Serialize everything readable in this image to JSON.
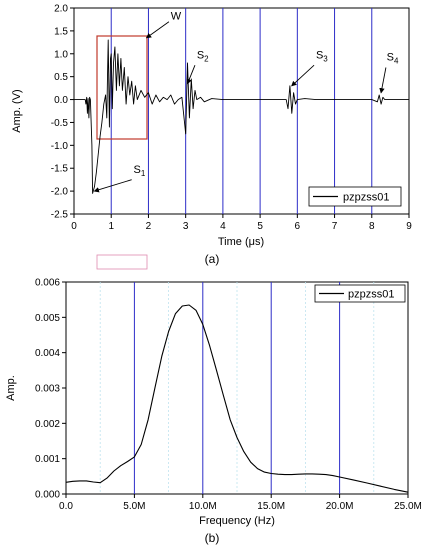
{
  "chart_data": [
    {
      "type": "line",
      "panel_label": "(a)",
      "xlabel": "Time (μs)",
      "ylabel": "Amp. (V)",
      "xlim": [
        0,
        9
      ],
      "ylim": [
        -2.5,
        2.0
      ],
      "x_ticks": [
        0,
        1,
        2,
        3,
        4,
        5,
        6,
        7,
        8,
        9
      ],
      "y_ticks": [
        -2.5,
        -2.0,
        -1.5,
        -1.0,
        -0.5,
        0.0,
        0.5,
        1.0,
        1.5,
        2.0
      ],
      "y_tick_labels": [
        "-2.5",
        "-2.0",
        "-1.5",
        "-1.0",
        "-0.5",
        "0.0",
        "0.5",
        "1.0",
        "1.5",
        "2.0"
      ],
      "vertical_gridlines": [
        1,
        2,
        3,
        4,
        5,
        6,
        7,
        8
      ],
      "legend": "bottom-right",
      "series": [
        {
          "name": "pzpzss01",
          "x": [
            0.0,
            0.3,
            0.32,
            0.34,
            0.36,
            0.38,
            0.4,
            0.42,
            0.44,
            0.48,
            0.5,
            0.55,
            0.6,
            0.65,
            0.7,
            0.75,
            0.8,
            0.85,
            0.88,
            0.9,
            0.92,
            0.95,
            0.98,
            1.0,
            1.03,
            1.06,
            1.1,
            1.14,
            1.18,
            1.22,
            1.26,
            1.3,
            1.35,
            1.4,
            1.45,
            1.5,
            1.55,
            1.6,
            1.65,
            1.7,
            1.8,
            1.9,
            2.0,
            2.1,
            2.2,
            2.3,
            2.4,
            2.5,
            2.6,
            2.7,
            2.8,
            2.9,
            3.0,
            3.05,
            3.1,
            3.15,
            3.2,
            3.25,
            3.3,
            3.4,
            3.5,
            3.7,
            4.0,
            4.5,
            5.0,
            5.5,
            5.7,
            5.75,
            5.8,
            5.85,
            5.9,
            5.95,
            6.0,
            6.2,
            6.5,
            7.0,
            7.5,
            8.0,
            8.15,
            8.2,
            8.25,
            8.3,
            8.35,
            8.5,
            9.0
          ],
          "y": [
            0.0,
            0.0,
            -0.1,
            0.05,
            -0.3,
            0.02,
            -0.4,
            0.05,
            0.0,
            -1.0,
            -2.05,
            -1.9,
            -1.6,
            -1.2,
            -0.8,
            -0.5,
            -0.1,
            0.1,
            -0.4,
            0.5,
            1.3,
            -0.6,
            0.9,
            1.0,
            -0.2,
            0.8,
            1.15,
            0.2,
            1.0,
            0.3,
            0.9,
            0.2,
            0.7,
            -0.1,
            0.5,
            0.1,
            0.4,
            -0.1,
            0.3,
            0.0,
            0.2,
            0.05,
            0.15,
            -0.1,
            0.1,
            -0.05,
            0.05,
            0.0,
            0.1,
            -0.1,
            0.0,
            0.05,
            -0.75,
            0.8,
            -0.4,
            0.45,
            -0.2,
            0.2,
            0.0,
            0.05,
            -0.05,
            0.02,
            0.0,
            0.0,
            0.0,
            0.0,
            0.0,
            -0.2,
            0.3,
            -0.3,
            0.15,
            -0.1,
            0.0,
            0.02,
            0.0,
            0.0,
            0.0,
            0.0,
            -0.05,
            0.1,
            -0.1,
            0.05,
            0.0,
            0.0,
            0.0
          ]
        }
      ],
      "annotations": [
        {
          "text": "W",
          "x": 2.6,
          "y": 1.75
        },
        {
          "text": "S",
          "sub": "1",
          "x": 1.6,
          "y": -1.6
        },
        {
          "text": "S",
          "sub": "2",
          "x": 3.3,
          "y": 0.9
        },
        {
          "text": "S",
          "sub": "3",
          "x": 6.5,
          "y": 0.9
        },
        {
          "text": "S",
          "sub": "4",
          "x": 8.4,
          "y": 0.85
        }
      ]
    },
    {
      "type": "line",
      "panel_label": "(b)",
      "xlabel": "Frequency (Hz)",
      "ylabel": "Amp.",
      "xlim": [
        0,
        25
      ],
      "ylim": [
        0,
        0.006
      ],
      "x_ticks": [
        0,
        5,
        10,
        15,
        20,
        25
      ],
      "x_tick_labels": [
        "0.0",
        "5.0M",
        "10.0M",
        "15.0M",
        "20.0M",
        "25.0M"
      ],
      "y_ticks": [
        0,
        0.001,
        0.002,
        0.003,
        0.004,
        0.005,
        0.006
      ],
      "y_tick_labels": [
        "0.000",
        "0.001",
        "0.002",
        "0.003",
        "0.004",
        "0.005",
        "0.006"
      ],
      "vertical_gridlines": [
        5,
        10,
        15,
        20
      ],
      "legend": "top-right",
      "series": [
        {
          "name": "pzpzss01",
          "x": [
            0,
            0.5,
            1,
            1.5,
            2,
            2.5,
            3,
            3.5,
            4,
            4.5,
            5,
            5.5,
            6,
            6.5,
            7,
            7.5,
            8,
            8.5,
            9,
            9.5,
            10,
            10.5,
            11,
            11.5,
            12,
            12.5,
            13,
            13.5,
            14,
            14.5,
            15,
            15.5,
            16,
            16.5,
            17,
            17.5,
            18,
            18.5,
            19,
            19.5,
            20,
            21,
            22,
            23,
            24,
            25
          ],
          "y": [
            0.00033,
            0.00036,
            0.00037,
            0.00037,
            0.00034,
            0.00032,
            0.00045,
            0.00065,
            0.0008,
            0.00092,
            0.00105,
            0.0014,
            0.0021,
            0.003,
            0.0039,
            0.0046,
            0.0051,
            0.00532,
            0.00535,
            0.0052,
            0.0048,
            0.0042,
            0.0035,
            0.0028,
            0.0021,
            0.0016,
            0.0012,
            0.0009,
            0.00072,
            0.00062,
            0.00058,
            0.00056,
            0.00055,
            0.00055,
            0.00056,
            0.00057,
            0.00057,
            0.00056,
            0.00055,
            0.00052,
            0.00048,
            0.0004,
            0.00031,
            0.00022,
            0.00013,
            5e-05
          ]
        }
      ]
    }
  ]
}
